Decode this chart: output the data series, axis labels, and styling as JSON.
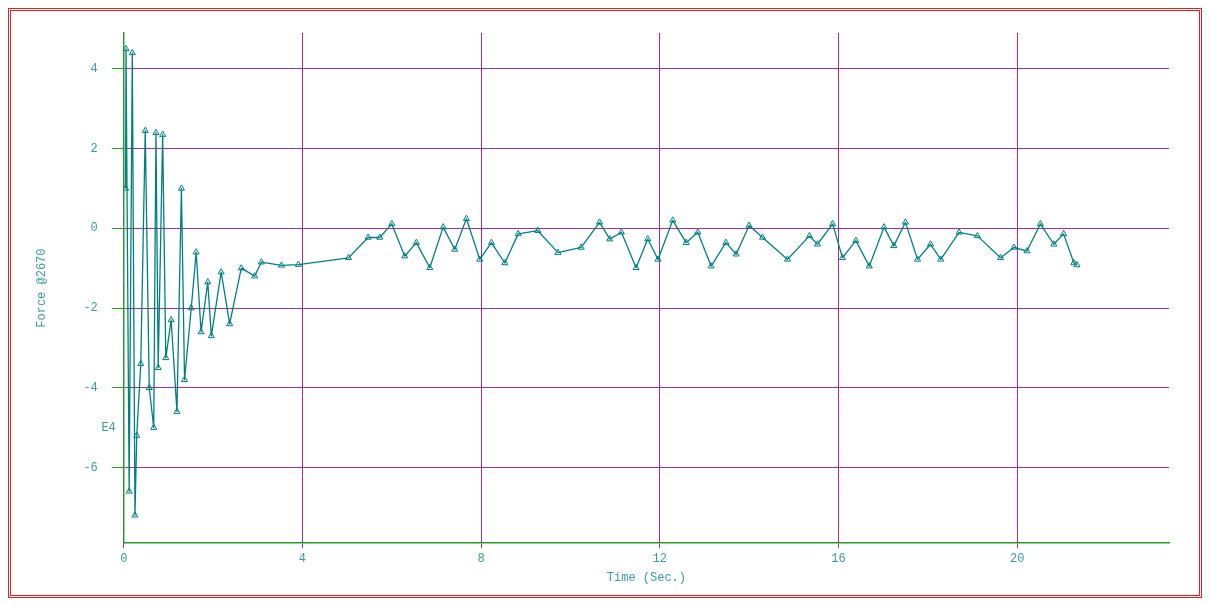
{
  "chart_data": {
    "type": "line",
    "xlabel": "Time (Sec.)",
    "ylabel": "Force @2670",
    "annotations": [
      "E4"
    ],
    "xlim": [
      0,
      23.4
    ],
    "xticks": [
      0,
      4,
      8,
      12,
      16,
      20
    ],
    "ylim": [
      -7.9,
      4.9
    ],
    "yticks": [
      4,
      2,
      0,
      -2,
      -4,
      -6
    ],
    "grid": true,
    "marker": "triangle",
    "line_style": "solid",
    "legend": false,
    "series": [
      {
        "color": "#008080",
        "x": [
          0.04,
          0.05,
          0.12,
          0.19,
          0.25,
          0.29,
          0.38,
          0.48,
          0.57,
          0.67,
          0.72,
          0.77,
          0.87,
          0.94,
          1.06,
          1.19,
          1.29,
          1.36,
          1.51,
          1.62,
          1.73,
          1.88,
          1.96,
          2.18,
          2.37,
          2.63,
          2.93,
          3.08,
          3.53,
          3.91,
          5.03,
          5.47,
          5.73,
          6.0,
          6.29,
          6.55,
          6.85,
          7.15,
          7.41,
          7.67,
          7.97,
          8.23,
          8.53,
          8.83,
          9.27,
          9.72,
          10.24,
          10.65,
          10.88,
          11.14,
          11.47,
          11.73,
          11.96,
          12.29,
          12.59,
          12.85,
          13.15,
          13.48,
          13.71,
          14.0,
          14.3,
          14.86,
          15.35,
          15.53,
          15.87,
          16.09,
          16.39,
          16.69,
          17.02,
          17.24,
          17.5,
          17.77,
          18.06,
          18.29,
          18.7,
          19.11,
          19.63,
          19.93,
          20.22,
          20.52,
          20.82,
          21.04,
          21.27,
          21.34
        ],
        "values": [
          1.0,
          4.5,
          -6.6,
          4.4,
          -7.2,
          -5.2,
          -3.4,
          2.45,
          -4.0,
          -5.0,
          2.4,
          -3.5,
          2.35,
          -3.25,
          -2.3,
          -4.6,
          1.0,
          -3.8,
          -2.0,
          -0.6,
          -2.6,
          -1.35,
          -2.7,
          -1.1,
          -2.4,
          -1.0,
          -1.2,
          -0.85,
          -0.93,
          -0.91,
          -0.74,
          -0.23,
          -0.23,
          0.11,
          -0.7,
          -0.36,
          -0.99,
          0.03,
          -0.53,
          0.24,
          -0.78,
          -0.36,
          -0.87,
          -0.14,
          -0.06,
          -0.61,
          -0.48,
          0.15,
          -0.27,
          -0.1,
          -0.99,
          -0.27,
          -0.78,
          0.2,
          -0.36,
          -0.1,
          -0.95,
          -0.36,
          -0.65,
          0.07,
          -0.23,
          -0.78,
          -0.19,
          -0.4,
          0.11,
          -0.74,
          -0.31,
          -0.95,
          0.03,
          -0.44,
          0.15,
          -0.78,
          -0.4,
          -0.78,
          -0.1,
          -0.19,
          -0.74,
          -0.48,
          -0.57,
          0.11,
          -0.4,
          -0.14,
          -0.87,
          -0.92
        ]
      }
    ]
  }
}
